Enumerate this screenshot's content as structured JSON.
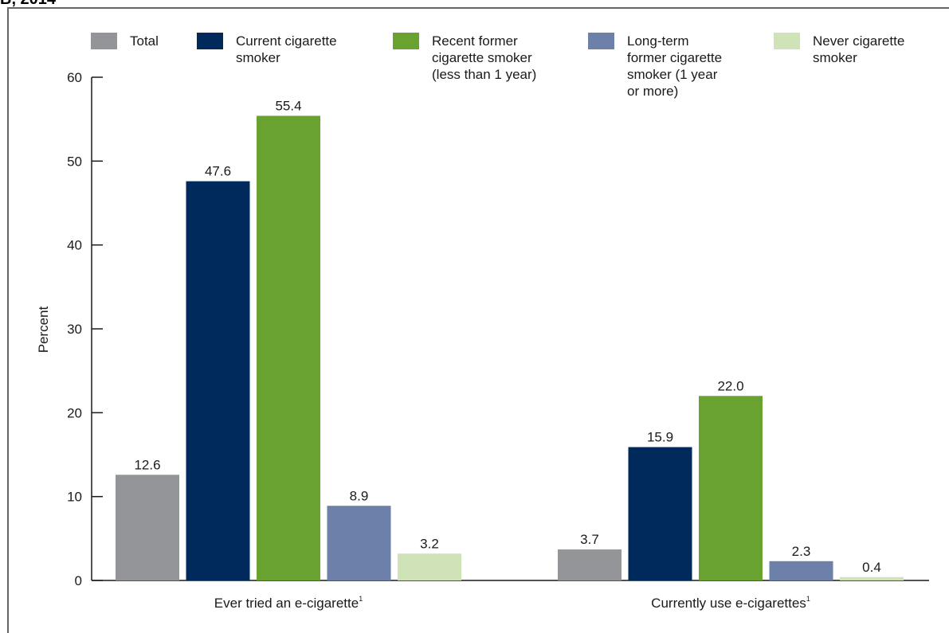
{
  "header_fragment": "B, 2014",
  "chart_data": {
    "type": "bar",
    "title": "",
    "xlabel": "",
    "ylabel": "Percent",
    "ylim": [
      0,
      60
    ],
    "yticks": [
      "0",
      "10",
      "20",
      "30",
      "40",
      "50",
      "60"
    ],
    "grid": false,
    "legend_position": "top",
    "categories": [
      "Ever tried an e-cigarette",
      "Currently use e-cigarettes"
    ],
    "category_footnote": "1",
    "series": [
      {
        "name": "Total",
        "color": "#939598",
        "values": [
          12.6,
          3.7
        ],
        "labels": [
          "12.6",
          "3.7"
        ]
      },
      {
        "name": "Current cigarette\nsmoker",
        "color": "#002a5c",
        "values": [
          47.6,
          15.9
        ],
        "labels": [
          "47.6",
          "15.9"
        ]
      },
      {
        "name": "Recent former\ncigarette smoker\n(less than 1 year)",
        "color": "#6aa232",
        "values": [
          55.4,
          22.0
        ],
        "labels": [
          "55.4",
          "22.0"
        ]
      },
      {
        "name": "Long-term\nformer cigarette\nsmoker (1 year\nor more)",
        "color": "#6c80aa",
        "values": [
          8.9,
          2.3
        ],
        "labels": [
          "8.9",
          "2.3"
        ]
      },
      {
        "name": "Never cigarette\nsmoker",
        "color": "#cfe2b8",
        "values": [
          3.2,
          0.4
        ],
        "labels": [
          "3.2",
          "0.4"
        ]
      }
    ]
  }
}
